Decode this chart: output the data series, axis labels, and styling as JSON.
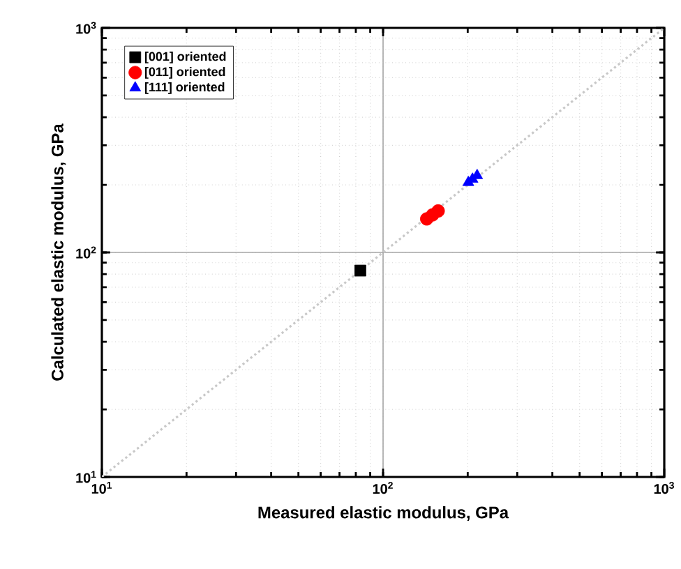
{
  "chart_data": {
    "type": "scatter",
    "xlabel": "Measured elastic modulus, GPa",
    "ylabel": "Calculated elastic modulus, GPa",
    "log": "xy",
    "grid": true,
    "legend": "top left",
    "xlim": [
      10,
      1000
    ],
    "ylim": [
      10,
      1000
    ],
    "xticks": [
      {
        "value": 10,
        "label": "10$^{1}$"
      },
      {
        "value": 100,
        "label": "10$^{2}$"
      },
      {
        "value": 1000,
        "label": "10$^{3}$"
      }
    ],
    "yticks": [
      {
        "value": 10,
        "label": "10$^{1}$"
      },
      {
        "value": 100,
        "label": "10$^{2}$"
      },
      {
        "value": 1000,
        "label": "10$^{3}$"
      }
    ],
    "series": [
      {
        "type": "line",
        "color": "#c8c8c8",
        "line_style": "dotted",
        "marker": "none",
        "x": [
          10,
          1000
        ],
        "values": [
          10,
          1000
        ]
      },
      {
        "name": "[001] oriented",
        "color": "#000000",
        "marker": "square",
        "x": [
          83
        ],
        "values": [
          83
        ]
      },
      {
        "name": "[011] oriented",
        "color": "#ff0000",
        "marker": "circle",
        "x": [
          143,
          150,
          157
        ],
        "values": [
          141,
          147,
          153
        ]
      },
      {
        "name": "[111] oriented",
        "color": "#0000ff",
        "marker": "triangle",
        "x": [
          201,
          208,
          216
        ],
        "values": [
          205,
          212,
          220
        ]
      }
    ]
  }
}
